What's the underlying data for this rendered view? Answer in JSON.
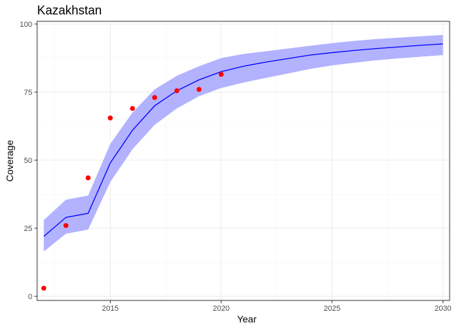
{
  "chart_data": {
    "type": "line",
    "title": "Kazakhstan",
    "xlabel": "Year",
    "ylabel": "Coverage",
    "xlim": [
      2011.7,
      2030.3
    ],
    "ylim": [
      -1.5,
      101
    ],
    "x_ticks": [
      2015,
      2020,
      2025,
      2030
    ],
    "x_minor_ticks": [
      2012.5,
      2017.5,
      2022.5,
      2027.5
    ],
    "y_ticks": [
      0,
      25,
      50,
      75,
      100
    ],
    "y_minor_ticks": [
      12.5,
      37.5,
      62.5,
      87.5
    ],
    "grid": true,
    "legend": "none",
    "colors": {
      "line": "#0000ff",
      "band": "#b2b2ff",
      "points": "#ff0000"
    },
    "line_series": {
      "x": [
        2012,
        2013,
        2014,
        2015,
        2016,
        2017,
        2018,
        2019,
        2020,
        2021,
        2022,
        2023,
        2024,
        2025,
        2026,
        2027,
        2028,
        2029,
        2030
      ],
      "y": [
        22,
        29,
        30.5,
        49,
        61,
        70,
        75.5,
        79.5,
        82.5,
        84.5,
        86,
        87.3,
        88.6,
        89.5,
        90.3,
        91,
        91.6,
        92.2,
        92.7
      ],
      "lower": [
        16.5,
        23,
        24.5,
        42,
        54,
        63,
        69,
        73.5,
        76.5,
        78.5,
        80.2,
        81.8,
        83.5,
        84.8,
        85.8,
        86.7,
        87.4,
        88,
        88.6
      ],
      "upper": [
        28,
        35.5,
        37,
        56,
        67.5,
        76,
        81,
        84.5,
        87.5,
        89,
        90,
        91,
        92,
        93,
        93.8,
        94.5,
        95,
        95.5,
        96
      ]
    },
    "points": {
      "x": [
        2012,
        2013,
        2014,
        2015,
        2016,
        2017,
        2018,
        2019,
        2020
      ],
      "y": [
        3,
        26,
        43.5,
        65.5,
        69,
        73,
        75.5,
        76,
        81.5
      ]
    }
  }
}
